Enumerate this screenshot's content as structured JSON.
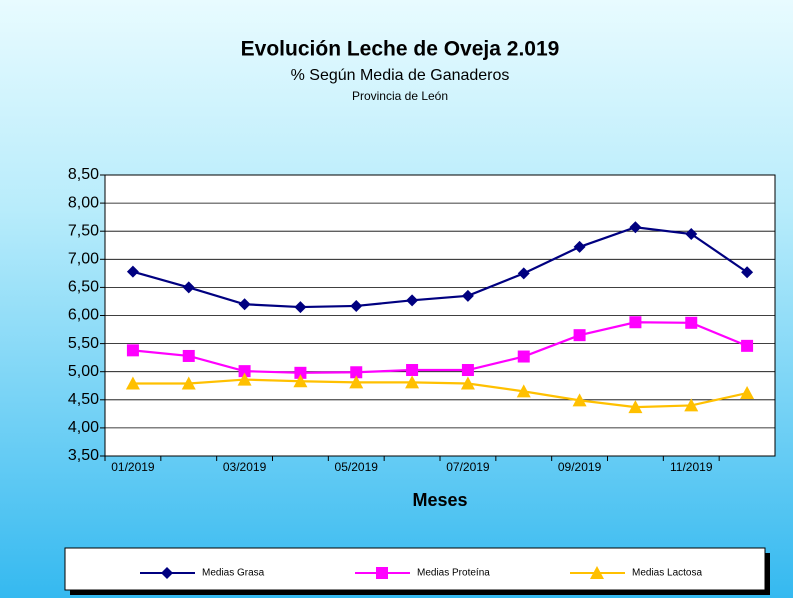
{
  "chart_data": {
    "type": "line",
    "title": "Evolución Leche de Oveja 2.019",
    "subtitle": "% Según Media de Ganaderos",
    "subtitle_2": "Provincia de León",
    "xlabel": "Meses",
    "categories": [
      "01/2019",
      null,
      "03/2019",
      null,
      "05/2019",
      null,
      "07/2019",
      null,
      "09/2019",
      null,
      "11/2019",
      null
    ],
    "series": [
      {
        "name": "Medias Grasa",
        "color": "#000080",
        "marker": "diamond",
        "values": [
          6.78,
          6.5,
          6.2,
          6.15,
          6.17,
          6.27,
          6.35,
          6.75,
          7.22,
          7.57,
          7.45,
          6.77
        ]
      },
      {
        "name": "Medias Proteína",
        "color": "#ff00ff",
        "marker": "square",
        "values": [
          5.38,
          5.28,
          5.01,
          4.98,
          4.99,
          5.03,
          5.03,
          5.27,
          5.65,
          5.88,
          5.87,
          5.46
        ]
      },
      {
        "name": "Medias Lactosa",
        "color": "#ffc000",
        "marker": "triangle",
        "values": [
          4.79,
          4.79,
          4.86,
          4.83,
          4.81,
          4.81,
          4.79,
          4.65,
          4.49,
          4.37,
          4.4,
          4.62
        ]
      }
    ],
    "ylim": [
      3.5,
      8.5
    ],
    "yticks": [
      {
        "value": 3.5,
        "label": "3,50"
      },
      {
        "value": 4,
        "label": "4,00"
      },
      {
        "value": 4.5,
        "label": "4,50"
      },
      {
        "value": 5,
        "label": "5,00"
      },
      {
        "value": 5.5,
        "label": "5,50"
      },
      {
        "value": 6,
        "label": "6,00"
      },
      {
        "value": 6.5,
        "label": "6,50"
      },
      {
        "value": 7,
        "label": "7,00"
      },
      {
        "value": 7.5,
        "label": "7,50"
      },
      {
        "value": 8,
        "label": "8,00"
      },
      {
        "value": 8.5,
        "label": "8,50"
      }
    ],
    "grid": true,
    "legend": "bottom"
  }
}
